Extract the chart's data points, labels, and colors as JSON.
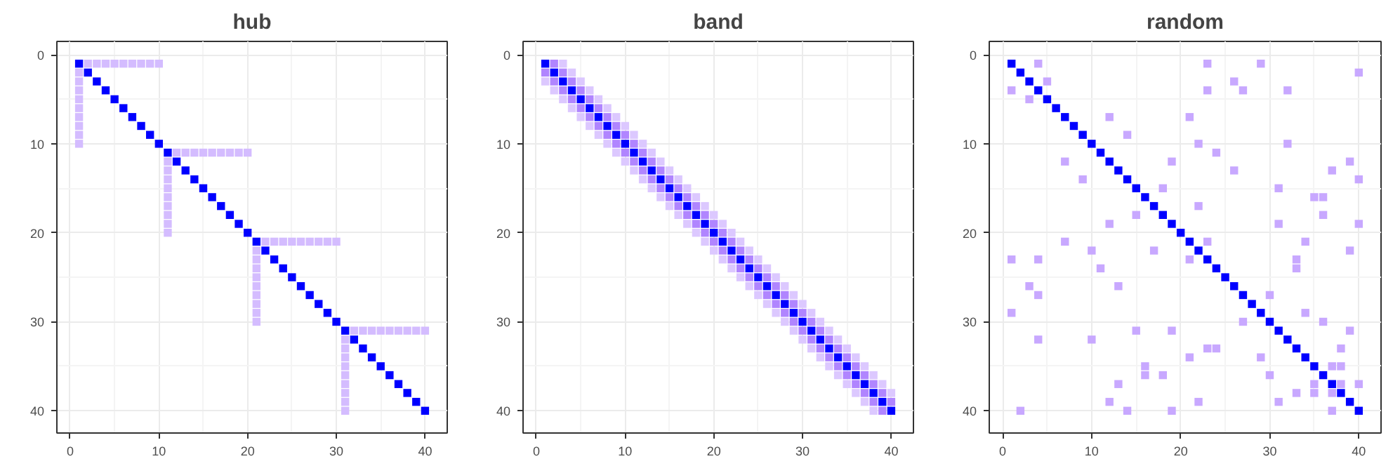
{
  "chart_data": [
    {
      "type": "scatter",
      "title": "hub",
      "marker": "square",
      "grid": true,
      "xlim": [
        -1.5,
        42.5
      ],
      "ylim": [
        42.5,
        -1.5
      ],
      "xticks": [
        0,
        10,
        20,
        30,
        40
      ],
      "yticks": [
        0,
        10,
        20,
        30,
        40
      ],
      "series": [
        {
          "color": "#d4bcff",
          "x": [
            2,
            3,
            4,
            5,
            6,
            7,
            8,
            9,
            10,
            1,
            1,
            1,
            1,
            1,
            1,
            1,
            1,
            1,
            12,
            13,
            14,
            15,
            16,
            17,
            18,
            19,
            20,
            11,
            11,
            11,
            11,
            11,
            11,
            11,
            11,
            11,
            22,
            23,
            24,
            25,
            26,
            27,
            28,
            29,
            30,
            21,
            21,
            21,
            21,
            21,
            21,
            21,
            21,
            21,
            32,
            33,
            34,
            35,
            36,
            37,
            38,
            39,
            40,
            31,
            31,
            31,
            31,
            31,
            31,
            31,
            31,
            31
          ],
          "values": [
            1,
            1,
            1,
            1,
            1,
            1,
            1,
            1,
            1,
            2,
            3,
            4,
            5,
            6,
            7,
            8,
            9,
            10,
            11,
            11,
            11,
            11,
            11,
            11,
            11,
            11,
            11,
            12,
            13,
            14,
            15,
            16,
            17,
            18,
            19,
            20,
            21,
            21,
            21,
            21,
            21,
            21,
            21,
            21,
            21,
            22,
            23,
            24,
            25,
            26,
            27,
            28,
            29,
            30,
            31,
            31,
            31,
            31,
            31,
            31,
            31,
            31,
            31,
            32,
            33,
            34,
            35,
            36,
            37,
            38,
            39,
            40
          ]
        },
        {
          "color": "#0000ff",
          "x": [
            1,
            2,
            3,
            4,
            5,
            6,
            7,
            8,
            9,
            10,
            11,
            12,
            13,
            14,
            15,
            16,
            17,
            18,
            19,
            20,
            21,
            22,
            23,
            24,
            25,
            26,
            27,
            28,
            29,
            30,
            31,
            32,
            33,
            34,
            35,
            36,
            37,
            38,
            39,
            40
          ],
          "values": [
            1,
            2,
            3,
            4,
            5,
            6,
            7,
            8,
            9,
            10,
            11,
            12,
            13,
            14,
            15,
            16,
            17,
            18,
            19,
            20,
            21,
            22,
            23,
            24,
            25,
            26,
            27,
            28,
            29,
            30,
            31,
            32,
            33,
            34,
            35,
            36,
            37,
            38,
            39,
            40
          ]
        }
      ]
    },
    {
      "type": "scatter",
      "title": "band",
      "marker": "square",
      "grid": true,
      "xlim": [
        -1.5,
        42.5
      ],
      "ylim": [
        42.5,
        -1.5
      ],
      "xticks": [
        0,
        10,
        20,
        30,
        40
      ],
      "yticks": [
        0,
        10,
        20,
        30,
        40
      ],
      "series": [
        {
          "color": "#dcc8ff",
          "x": [
            1,
            2,
            3,
            4,
            5,
            6,
            7,
            8,
            9,
            10,
            11,
            12,
            13,
            14,
            15,
            16,
            17,
            18,
            19,
            20,
            21,
            22,
            23,
            24,
            25,
            26,
            27,
            28,
            29,
            30,
            31,
            32,
            33,
            34,
            35,
            36,
            37,
            38,
            3,
            4,
            5,
            6,
            7,
            8,
            9,
            10,
            11,
            12,
            13,
            14,
            15,
            16,
            17,
            18,
            19,
            20,
            21,
            22,
            23,
            24,
            25,
            26,
            27,
            28,
            29,
            30,
            31,
            32,
            33,
            34,
            35,
            36,
            37,
            38,
            39,
            40
          ],
          "values": [
            3,
            4,
            5,
            6,
            7,
            8,
            9,
            10,
            11,
            12,
            13,
            14,
            15,
            16,
            17,
            18,
            19,
            20,
            21,
            22,
            23,
            24,
            25,
            26,
            27,
            28,
            29,
            30,
            31,
            32,
            33,
            34,
            35,
            36,
            37,
            38,
            39,
            40,
            1,
            2,
            3,
            4,
            5,
            6,
            7,
            8,
            9,
            10,
            11,
            12,
            13,
            14,
            15,
            16,
            17,
            18,
            19,
            20,
            21,
            22,
            23,
            24,
            25,
            26,
            27,
            28,
            29,
            30,
            31,
            32,
            33,
            34,
            35,
            36,
            37,
            38
          ]
        },
        {
          "color": "#b085ff",
          "x": [
            1,
            2,
            3,
            4,
            5,
            6,
            7,
            8,
            9,
            10,
            11,
            12,
            13,
            14,
            15,
            16,
            17,
            18,
            19,
            20,
            21,
            22,
            23,
            24,
            25,
            26,
            27,
            28,
            29,
            30,
            31,
            32,
            33,
            34,
            35,
            36,
            37,
            38,
            39,
            2,
            3,
            4,
            5,
            6,
            7,
            8,
            9,
            10,
            11,
            12,
            13,
            14,
            15,
            16,
            17,
            18,
            19,
            20,
            21,
            22,
            23,
            24,
            25,
            26,
            27,
            28,
            29,
            30,
            31,
            32,
            33,
            34,
            35,
            36,
            37,
            38,
            39,
            40
          ],
          "values": [
            2,
            3,
            4,
            5,
            6,
            7,
            8,
            9,
            10,
            11,
            12,
            13,
            14,
            15,
            16,
            17,
            18,
            19,
            20,
            21,
            22,
            23,
            24,
            25,
            26,
            27,
            28,
            29,
            30,
            31,
            32,
            33,
            34,
            35,
            36,
            37,
            38,
            39,
            40,
            1,
            2,
            3,
            4,
            5,
            6,
            7,
            8,
            9,
            10,
            11,
            12,
            13,
            14,
            15,
            16,
            17,
            18,
            19,
            20,
            21,
            22,
            23,
            24,
            25,
            26,
            27,
            28,
            29,
            30,
            31,
            32,
            33,
            34,
            35,
            36,
            37,
            38,
            39
          ]
        },
        {
          "color": "#0000ff",
          "x": [
            1,
            2,
            3,
            4,
            5,
            6,
            7,
            8,
            9,
            10,
            11,
            12,
            13,
            14,
            15,
            16,
            17,
            18,
            19,
            20,
            21,
            22,
            23,
            24,
            25,
            26,
            27,
            28,
            29,
            30,
            31,
            32,
            33,
            34,
            35,
            36,
            37,
            38,
            39,
            40
          ],
          "values": [
            1,
            2,
            3,
            4,
            5,
            6,
            7,
            8,
            9,
            10,
            11,
            12,
            13,
            14,
            15,
            16,
            17,
            18,
            19,
            20,
            21,
            22,
            23,
            24,
            25,
            26,
            27,
            28,
            29,
            30,
            31,
            32,
            33,
            34,
            35,
            36,
            37,
            38,
            39,
            40
          ]
        }
      ]
    },
    {
      "type": "scatter",
      "title": "random",
      "marker": "square",
      "grid": true,
      "xlim": [
        -1.5,
        42.5
      ],
      "ylim": [
        42.5,
        -1.5
      ],
      "xticks": [
        0,
        10,
        20,
        30,
        40
      ],
      "yticks": [
        0,
        10,
        20,
        30,
        40
      ],
      "series": [
        {
          "color": "#c8a8ff",
          "x": [
            4,
            23,
            29,
            40,
            5,
            26,
            1,
            23,
            27,
            32,
            3,
            12,
            21,
            14,
            22,
            32,
            24,
            7,
            19,
            39,
            26,
            37,
            9,
            40,
            18,
            31,
            35,
            36,
            22,
            15,
            36,
            12,
            31,
            40,
            7,
            23,
            34,
            10,
            17,
            39,
            1,
            4,
            21,
            33,
            33,
            11,
            3,
            13,
            4,
            30,
            1,
            34,
            27,
            36,
            15,
            19,
            39,
            4,
            10,
            23,
            24,
            38,
            21,
            29,
            16,
            37,
            38,
            16,
            18,
            30,
            13,
            35,
            38,
            40,
            33,
            35,
            37,
            12,
            22,
            31,
            2,
            14,
            19,
            37
          ],
          "values": [
            1,
            1,
            1,
            2,
            3,
            3,
            4,
            4,
            4,
            4,
            5,
            7,
            7,
            9,
            10,
            10,
            11,
            12,
            12,
            12,
            13,
            13,
            14,
            14,
            15,
            15,
            16,
            16,
            17,
            18,
            18,
            19,
            19,
            19,
            21,
            21,
            21,
            22,
            22,
            22,
            23,
            23,
            23,
            23,
            24,
            24,
            26,
            26,
            27,
            27,
            29,
            29,
            30,
            30,
            31,
            31,
            31,
            32,
            32,
            33,
            33,
            33,
            34,
            34,
            35,
            35,
            35,
            36,
            36,
            36,
            37,
            37,
            37,
            37,
            38,
            38,
            38,
            39,
            39,
            39,
            40,
            40,
            40,
            40
          ]
        },
        {
          "color": "#0000ff",
          "x": [
            1,
            2,
            3,
            4,
            5,
            6,
            7,
            8,
            9,
            10,
            11,
            12,
            13,
            14,
            15,
            16,
            17,
            18,
            19,
            20,
            21,
            22,
            23,
            24,
            25,
            26,
            27,
            28,
            29,
            30,
            31,
            32,
            33,
            34,
            35,
            36,
            37,
            38,
            39,
            40
          ],
          "values": [
            1,
            2,
            3,
            4,
            5,
            6,
            7,
            8,
            9,
            10,
            11,
            12,
            13,
            14,
            15,
            16,
            17,
            18,
            19,
            20,
            21,
            22,
            23,
            24,
            25,
            26,
            27,
            28,
            29,
            30,
            31,
            32,
            33,
            34,
            35,
            36,
            37,
            38,
            39,
            40
          ]
        }
      ]
    }
  ]
}
